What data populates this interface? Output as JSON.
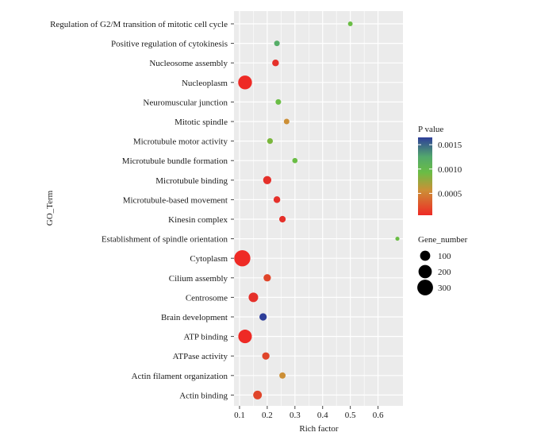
{
  "chart_data": {
    "type": "scatter",
    "xlabel": "Rich factor",
    "ylabel": "GO_Term",
    "xlim": [
      0.08,
      0.69
    ],
    "x_ticks": [
      "0.1",
      "0.2",
      "0.3",
      "0.4",
      "0.5",
      "0.6"
    ],
    "x_tick_values": [
      0.1,
      0.2,
      0.3,
      0.4,
      0.5,
      0.6
    ],
    "grid": true,
    "legend_placement": "right",
    "color_legend": {
      "title": "P value",
      "ticks": [
        "0.0015",
        "0.0010",
        "0.0005"
      ],
      "tick_values": [
        0.0015,
        0.001,
        0.0005
      ],
      "range": [
        5e-05,
        0.00165
      ],
      "colors": [
        "#ee2a25",
        "#6abd45",
        "#2e3e99"
      ]
    },
    "size_legend": {
      "title": "Gene_number",
      "labels": [
        "100",
        "200",
        "300"
      ],
      "values": [
        100,
        200,
        300
      ]
    },
    "terms": [
      "Regulation of G2/M transition of mitotic cell cycle",
      "Positive regulation of cytokinesis",
      "Nucleosome assembly",
      "Nucleoplasm",
      "Neuromuscular junction",
      "Mitotic spindle",
      "Microtubule motor activity",
      "Microtubule bundle formation",
      "Microtubule binding",
      "Microtubule-based movement",
      "Kinesin complex",
      "Establishment of spindle orientation",
      "Cytoplasm",
      "Cilium assembly",
      "Centrosome",
      "Brain development",
      "ATP binding",
      "ATPase activity",
      "Actin filament organization",
      "Actin binding"
    ],
    "points": [
      {
        "term": "Regulation of G2/M transition of mitotic cell cycle",
        "x": 0.5,
        "p": 0.0009,
        "genes": 8,
        "color": "#6abd45"
      },
      {
        "term": "Positive regulation of cytokinesis",
        "x": 0.235,
        "p": 0.001,
        "genes": 16,
        "color": "#56ad68"
      },
      {
        "term": "Nucleosome assembly",
        "x": 0.23,
        "p": 0.0001,
        "genes": 30,
        "color": "#e5302a"
      },
      {
        "term": "Nucleoplasm",
        "x": 0.12,
        "p": 5e-05,
        "genes": 220,
        "color": "#ee2a25"
      },
      {
        "term": "Neuromuscular junction",
        "x": 0.24,
        "p": 0.0008,
        "genes": 16,
        "color": "#6abd45"
      },
      {
        "term": "Mitotic spindle",
        "x": 0.27,
        "p": 0.0004,
        "genes": 16,
        "color": "#cc8f36"
      },
      {
        "term": "Microtubule motor activity",
        "x": 0.21,
        "p": 0.0007,
        "genes": 18,
        "color": "#7ab63c"
      },
      {
        "term": "Microtubule bundle formation",
        "x": 0.3,
        "p": 0.0008,
        "genes": 13,
        "color": "#6abd45"
      },
      {
        "term": "Microtubule binding",
        "x": 0.2,
        "p": 0.0001,
        "genes": 55,
        "color": "#e5302a"
      },
      {
        "term": "Microtubule-based movement",
        "x": 0.235,
        "p": 0.0001,
        "genes": 30,
        "color": "#e5302a"
      },
      {
        "term": "Kinesin complex",
        "x": 0.255,
        "p": 0.0001,
        "genes": 27,
        "color": "#e5302a"
      },
      {
        "term": "Establishment of spindle orientation",
        "x": 0.67,
        "p": 0.0009,
        "genes": 4,
        "color": "#6abd45"
      },
      {
        "term": "Cytoplasm",
        "x": 0.11,
        "p": 5e-05,
        "genes": 320,
        "color": "#ee2a25"
      },
      {
        "term": "Cilium assembly",
        "x": 0.2,
        "p": 0.0002,
        "genes": 40,
        "color": "#e0452a"
      },
      {
        "term": "Centrosome",
        "x": 0.15,
        "p": 0.0001,
        "genes": 85,
        "color": "#e5302a"
      },
      {
        "term": "Brain development",
        "x": 0.185,
        "p": 0.0015,
        "genes": 40,
        "color": "#2e3e99"
      },
      {
        "term": "ATP binding",
        "x": 0.12,
        "p": 5e-05,
        "genes": 210,
        "color": "#ee2a25"
      },
      {
        "term": "ATPase activity",
        "x": 0.195,
        "p": 0.0002,
        "genes": 40,
        "color": "#e0452a"
      },
      {
        "term": "Actin filament organization",
        "x": 0.255,
        "p": 0.0004,
        "genes": 24,
        "color": "#cc8f36"
      },
      {
        "term": "Actin binding",
        "x": 0.165,
        "p": 0.0002,
        "genes": 65,
        "color": "#e0452a"
      }
    ]
  },
  "colors": {
    "panel_background": "#ebebeb",
    "grid_line": "#ffffff",
    "text": "#1a1a1a"
  }
}
